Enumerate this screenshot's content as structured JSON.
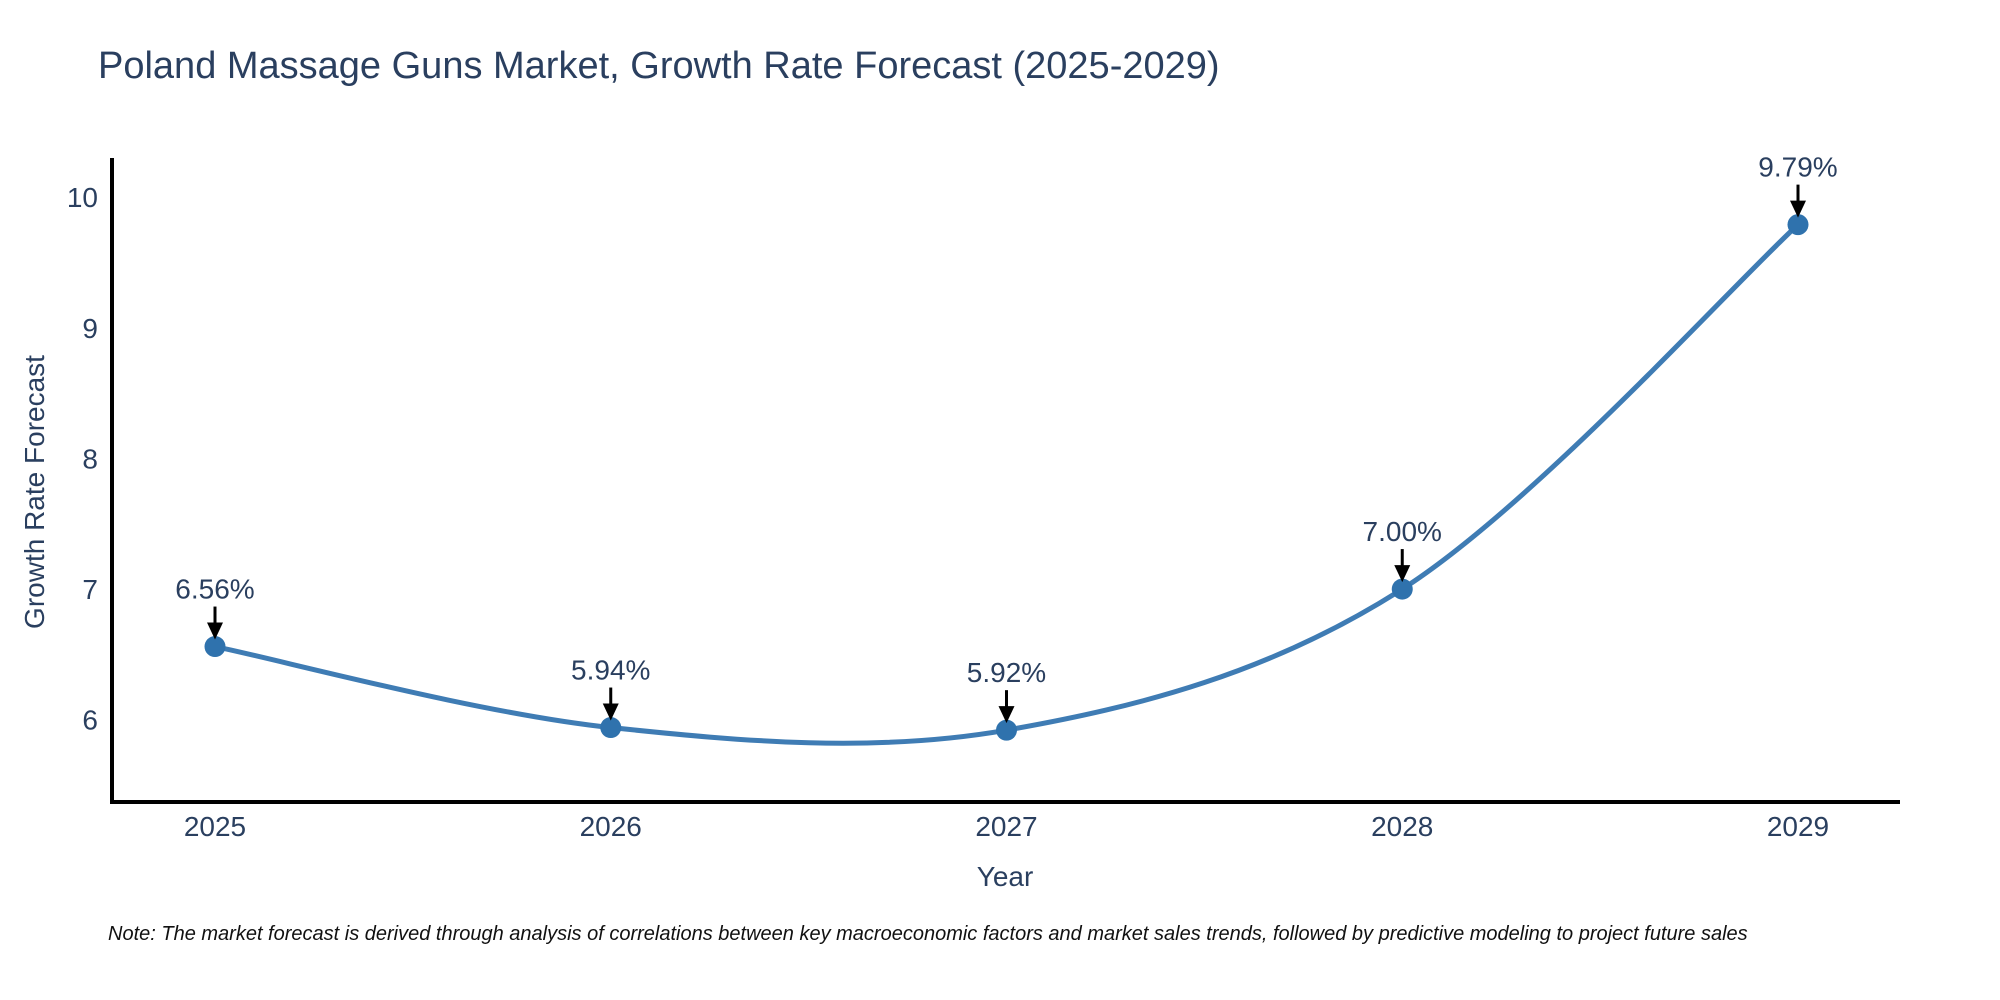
{
  "title": "Poland Massage Guns Market, Growth Rate Forecast (2025-2029)",
  "note": "Note: The market forecast is derived through analysis of correlations between key macroeconomic factors and market sales trends, followed by predictive modeling to project future sales",
  "colors": {
    "line": "#3f7cb4",
    "marker": "#2f72ad",
    "axis_line": "#000000",
    "arrow": "#000000",
    "text": "#2a3f5f",
    "note_text": "#111111",
    "background": "#ffffff"
  },
  "chart_data": {
    "type": "line",
    "title": "Poland Massage Guns Market, Growth Rate Forecast (2025-2029)",
    "xlabel": "Year",
    "ylabel": "Growth Rate Forecast",
    "x": [
      2025,
      2026,
      2027,
      2028,
      2029
    ],
    "series": [
      {
        "name": "Growth Rate Forecast",
        "values": [
          6.56,
          5.94,
          5.92,
          7.0,
          9.79
        ]
      }
    ],
    "point_labels": [
      "6.56%",
      "5.94%",
      "5.92%",
      "7.00%",
      "9.79%"
    ],
    "x_tick_labels": [
      "2025",
      "2026",
      "2027",
      "2028",
      "2029"
    ],
    "y_ticks": [
      6,
      7,
      8,
      9,
      10
    ],
    "ylim": [
      5.37,
      10.3
    ],
    "grid": false,
    "legend_position": "none",
    "line_shape": "spline",
    "markers": true,
    "annotation_style": "value label above point with black down arrow"
  }
}
